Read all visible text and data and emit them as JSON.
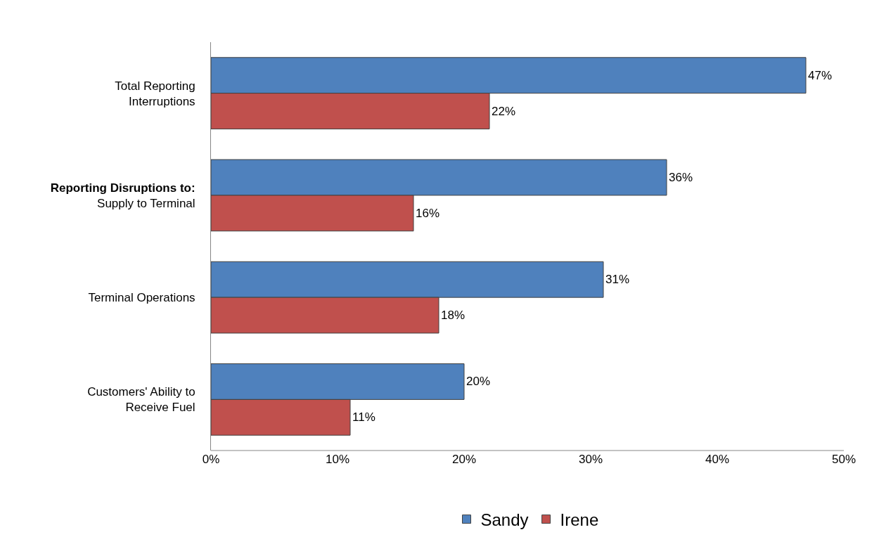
{
  "chart_data": {
    "type": "bar",
    "orientation": "horizontal",
    "categories": [
      "Total Reporting Interruptions",
      "Reporting Disruptions to: Supply to Terminal",
      "Terminal Operations",
      "Customers' Ability to Receive Fuel"
    ],
    "series": [
      {
        "name": "Sandy",
        "color": "#4f81bd",
        "values": [
          47,
          36,
          31,
          20
        ],
        "value_labels": [
          "47%",
          "36%",
          "31%",
          "20%"
        ]
      },
      {
        "name": "Irene",
        "color": "#c0504d",
        "values": [
          22,
          16,
          18,
          11
        ],
        "value_labels": [
          "22%",
          "16%",
          "18%",
          "11%"
        ]
      }
    ],
    "xlim": [
      0,
      50
    ],
    "xticks": [
      {
        "value": 0,
        "label": "0%"
      },
      {
        "value": 10,
        "label": "10%"
      },
      {
        "value": 20,
        "label": "20%"
      },
      {
        "value": 30,
        "label": "30%"
      },
      {
        "value": 40,
        "label": "40%"
      },
      {
        "value": 50,
        "label": "50%"
      }
    ],
    "legend": "bottom"
  }
}
